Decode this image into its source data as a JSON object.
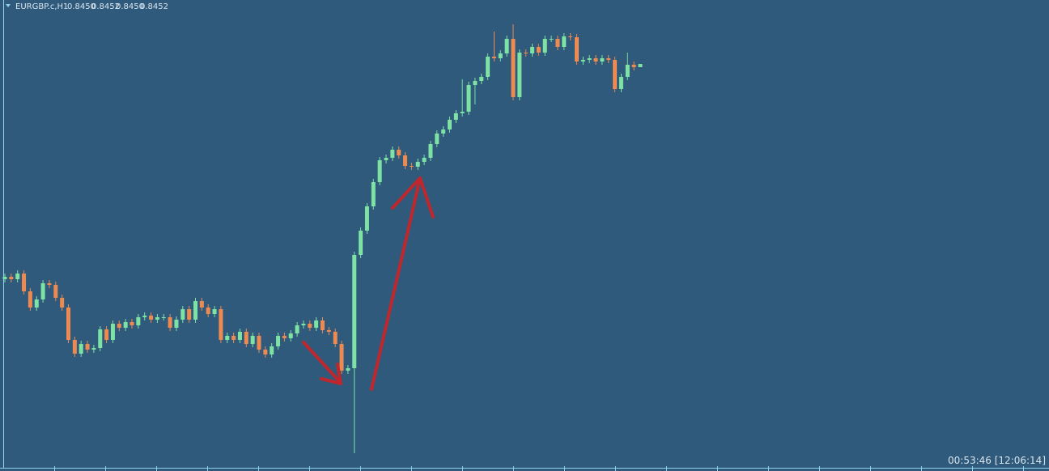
{
  "header": {
    "symbol": "EURGBP.c,H1",
    "ohlc": [
      "0.8450",
      "0.8452",
      "0.8450",
      "0.8452"
    ]
  },
  "timer": "00:53:46 [12:06:14]",
  "chart_data": {
    "type": "candlestick",
    "up_color": "#7ee2a4",
    "down_color": "#ec8a52",
    "open": [
      0.8319,
      0.83205,
      0.8319,
      0.83225,
      0.83115,
      0.83015,
      0.83065,
      0.83165,
      0.83155,
      0.83075,
      0.83015,
      0.82815,
      0.8273,
      0.8279,
      0.82755,
      0.82765,
      0.8288,
      0.82815,
      0.82915,
      0.8289,
      0.82925,
      0.82905,
      0.82955,
      0.82965,
      0.8294,
      0.82955,
      0.82955,
      0.8289,
      0.8294,
      0.83005,
      0.8294,
      0.83055,
      0.83015,
      0.82975,
      0.83005,
      0.82815,
      0.8284,
      0.82815,
      0.82865,
      0.8279,
      0.8284,
      0.82755,
      0.82725,
      0.82775,
      0.8284,
      0.82825,
      0.82855,
      0.82905,
      0.82915,
      0.8289,
      0.82935,
      0.82875,
      0.82865,
      0.8279,
      0.82625,
      0.8264,
      0.8334,
      0.8349,
      0.8364,
      0.8379,
      0.83925,
      0.8394,
      0.8399,
      0.83955,
      0.8389,
      0.83885,
      0.83915,
      0.8394,
      0.84025,
      0.8409,
      0.84115,
      0.84175,
      0.84215,
      0.84225,
      0.8439,
      0.84415,
      0.8444,
      0.84565,
      0.84555,
      0.84585,
      0.84675,
      0.84315,
      0.8459,
      0.84585,
      0.84625,
      0.8459,
      0.84675,
      0.84675,
      0.84625,
      0.8469,
      0.84685,
      0.84535,
      0.84545,
      0.84555,
      0.84535,
      0.84555,
      0.84545,
      0.84365,
      0.8444,
      0.84515,
      0.845
    ],
    "high": [
      0.83225,
      0.83225,
      0.83245,
      0.83245,
      0.83135,
      0.83085,
      0.83185,
      0.83185,
      0.83175,
      0.83095,
      0.83035,
      0.82835,
      0.8281,
      0.8281,
      0.82785,
      0.829,
      0.829,
      0.82935,
      0.82935,
      0.82945,
      0.82945,
      0.82975,
      0.82985,
      0.82985,
      0.82975,
      0.82975,
      0.82975,
      0.8296,
      0.83025,
      0.83025,
      0.83075,
      0.83075,
      0.83035,
      0.83025,
      0.83025,
      0.8286,
      0.8286,
      0.82885,
      0.82885,
      0.8286,
      0.8286,
      0.82775,
      0.82795,
      0.8286,
      0.8286,
      0.82875,
      0.82925,
      0.82935,
      0.82935,
      0.82955,
      0.82955,
      0.82895,
      0.82885,
      0.8281,
      0.8266,
      0.8336,
      0.8351,
      0.8366,
      0.8381,
      0.83945,
      0.8396,
      0.8401,
      0.8401,
      0.83975,
      0.8391,
      0.83935,
      0.8396,
      0.84045,
      0.8411,
      0.84135,
      0.84195,
      0.84235,
      0.84425,
      0.8441,
      0.84435,
      0.8446,
      0.84585,
      0.8472,
      0.84605,
      0.84695,
      0.84765,
      0.8461,
      0.8461,
      0.84645,
      0.84645,
      0.84695,
      0.84695,
      0.84695,
      0.8471,
      0.8471,
      0.84705,
      0.84565,
      0.84575,
      0.84575,
      0.84575,
      0.84575,
      0.84565,
      0.8446,
      0.8459,
      0.84535,
      0.8452
    ],
    "low": [
      0.8317,
      0.8317,
      0.8317,
      0.83095,
      0.82995,
      0.82995,
      0.83045,
      0.83135,
      0.83055,
      0.82995,
      0.82795,
      0.8271,
      0.8271,
      0.82735,
      0.82735,
      0.82745,
      0.82795,
      0.82795,
      0.8287,
      0.8287,
      0.82885,
      0.82885,
      0.82935,
      0.8292,
      0.8292,
      0.82935,
      0.8287,
      0.8287,
      0.8292,
      0.8292,
      0.8292,
      0.82995,
      0.82955,
      0.82955,
      0.82795,
      0.82795,
      0.82795,
      0.82795,
      0.8277,
      0.8277,
      0.82735,
      0.82705,
      0.82705,
      0.82755,
      0.82805,
      0.82805,
      0.82835,
      0.82885,
      0.8287,
      0.8287,
      0.82855,
      0.82845,
      0.8277,
      0.82605,
      0.82605,
      0.82115,
      0.8332,
      0.8347,
      0.8362,
      0.8377,
      0.83905,
      0.8392,
      0.83935,
      0.8387,
      0.83865,
      0.83865,
      0.83895,
      0.8392,
      0.84005,
      0.8407,
      0.84095,
      0.84155,
      0.84195,
      0.84205,
      0.8427,
      0.84395,
      0.8442,
      0.84535,
      0.84535,
      0.84565,
      0.84295,
      0.84295,
      0.84565,
      0.84565,
      0.8457,
      0.8457,
      0.84655,
      0.84605,
      0.84605,
      0.84665,
      0.84515,
      0.84515,
      0.84525,
      0.84515,
      0.84515,
      0.84525,
      0.84345,
      0.84345,
      0.8442,
      0.8448,
      0.845
    ],
    "close": [
      0.83205,
      0.8319,
      0.83225,
      0.83115,
      0.83015,
      0.83065,
      0.83165,
      0.83155,
      0.83075,
      0.83015,
      0.82815,
      0.8273,
      0.8279,
      0.82755,
      0.82765,
      0.8288,
      0.82815,
      0.82915,
      0.8289,
      0.82925,
      0.82905,
      0.82955,
      0.82965,
      0.8294,
      0.82955,
      0.82955,
      0.8289,
      0.8294,
      0.83005,
      0.8294,
      0.83055,
      0.83015,
      0.82975,
      0.83005,
      0.82815,
      0.8284,
      0.82815,
      0.82865,
      0.8279,
      0.8284,
      0.82755,
      0.82725,
      0.82775,
      0.8284,
      0.82825,
      0.82855,
      0.82905,
      0.82915,
      0.8289,
      0.82935,
      0.82875,
      0.82865,
      0.8279,
      0.82625,
      0.8264,
      0.8334,
      0.8349,
      0.8364,
      0.8379,
      0.83925,
      0.8394,
      0.8399,
      0.83955,
      0.8389,
      0.83885,
      0.83915,
      0.8394,
      0.84025,
      0.8409,
      0.84115,
      0.84175,
      0.84215,
      0.84225,
      0.8439,
      0.84415,
      0.8444,
      0.84565,
      0.84555,
      0.84585,
      0.84675,
      0.84315,
      0.8459,
      0.84585,
      0.84625,
      0.8459,
      0.84675,
      0.84675,
      0.84625,
      0.8469,
      0.84685,
      0.84535,
      0.84545,
      0.84555,
      0.84535,
      0.84555,
      0.84545,
      0.84365,
      0.8444,
      0.84515,
      0.845,
      0.8452
    ]
  }
}
